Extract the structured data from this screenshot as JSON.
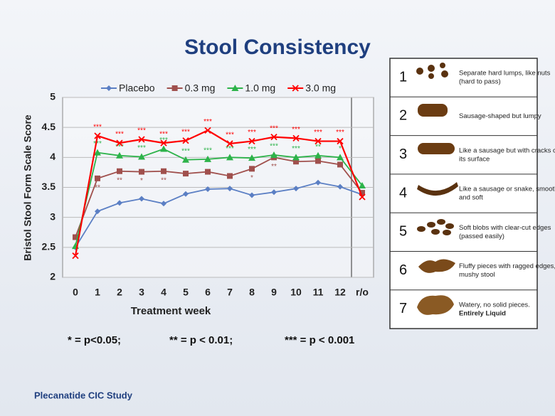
{
  "slide_title": "Stool Consistency",
  "chart_data": {
    "type": "line",
    "x_label": "Treatment week",
    "y_label": "Bristol Stool Form Scale Score",
    "categories": [
      "0",
      "1",
      "2",
      "3",
      "4",
      "5",
      "6",
      "7",
      "8",
      "9",
      "10",
      "11",
      "12",
      "r/o"
    ],
    "ylim": [
      2,
      5
    ],
    "yticks": [
      2,
      2.5,
      3,
      3.5,
      4,
      4.5,
      5
    ],
    "grid": true,
    "legend": "top",
    "series": [
      {
        "name": "Placebo",
        "color": "#5b7fc4",
        "marker": "diamond",
        "values": [
          2.5,
          3.1,
          3.24,
          3.31,
          3.23,
          3.39,
          3.47,
          3.48,
          3.37,
          3.42,
          3.48,
          3.58,
          3.51,
          3.38
        ],
        "significance": [
          null,
          null,
          null,
          null,
          null,
          null,
          null,
          null,
          null,
          null,
          null,
          null,
          null,
          null
        ]
      },
      {
        "name": "0.3 mg",
        "color": "#a0504d",
        "marker": "square",
        "values": [
          2.67,
          3.65,
          3.77,
          3.76,
          3.77,
          3.73,
          3.76,
          3.69,
          3.81,
          4.0,
          3.93,
          3.94,
          3.88,
          3.41
        ],
        "significance": [
          null,
          "**",
          "**",
          "*",
          "**",
          null,
          null,
          null,
          "*",
          "**",
          null,
          null,
          null,
          null
        ]
      },
      {
        "name": "1.0 mg",
        "color": "#2db34a",
        "marker": "triangle",
        "values": [
          2.52,
          4.08,
          4.03,
          4.01,
          4.14,
          3.96,
          3.97,
          4.0,
          3.99,
          4.04,
          4.0,
          4.03,
          4.0,
          3.53
        ],
        "significance": [
          null,
          "***",
          "***",
          "***",
          "***",
          "***",
          "***",
          "***",
          "***",
          "***",
          "***",
          "**",
          "*",
          null
        ]
      },
      {
        "name": "3.0 mg",
        "color": "#ff0000",
        "marker": "x",
        "values": [
          2.36,
          4.36,
          4.24,
          4.3,
          4.24,
          4.28,
          4.45,
          4.23,
          4.27,
          4.34,
          4.32,
          4.27,
          4.27,
          3.34
        ],
        "significance": [
          null,
          "***",
          "***",
          "***",
          "***",
          "***",
          "***",
          "***",
          "***",
          "***",
          "***",
          "***",
          "***",
          null
        ]
      }
    ]
  },
  "footnotes": [
    "* = p<0.05;",
    "** = p < 0.01;",
    "*** = p < 0.001"
  ],
  "footer": "Plecanatide CIC Study",
  "bristol_scale": [
    {
      "number": 1,
      "description": [
        "Separate hard lumps, like nuts",
        "(hard to pass)"
      ]
    },
    {
      "number": 2,
      "description": [
        "Sausage-shaped but lumpy"
      ]
    },
    {
      "number": 3,
      "description": [
        "Like a sausage but with cracks on",
        "its surface"
      ]
    },
    {
      "number": 4,
      "description": [
        "Like a sausage or snake, smooth",
        "and soft"
      ]
    },
    {
      "number": 5,
      "description": [
        "Soft blobs with clear-cut edges",
        "(passed easily)"
      ]
    },
    {
      "number": 6,
      "description": [
        "Fluffy pieces with ragged edges, a",
        "mushy stool"
      ]
    },
    {
      "number": 7,
      "description": [
        "Watery, no solid pieces.",
        "Entirely Liquid"
      ]
    }
  ]
}
